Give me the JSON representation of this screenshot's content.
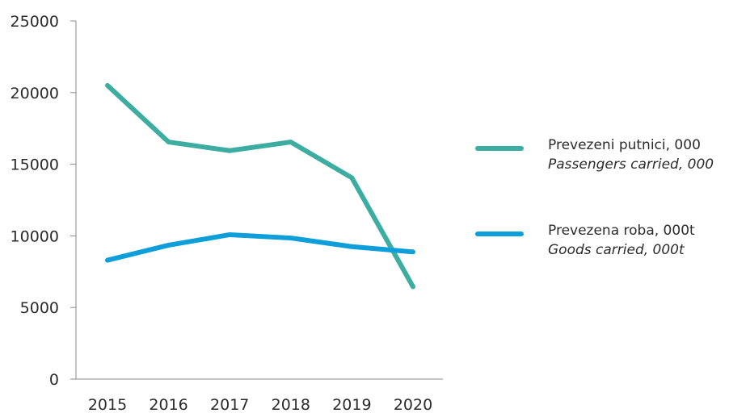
{
  "chart_data": {
    "type": "line",
    "categories": [
      "2015",
      "2016",
      "2017",
      "2018",
      "2019",
      "2020"
    ],
    "ylim": [
      0,
      25000
    ],
    "yticks": [
      "0",
      "5000",
      "10000",
      "15000",
      "20000",
      "25000"
    ],
    "series": [
      {
        "name": "Prevezeni putnici, 000",
        "name_en": "Passengers carried, 000",
        "color": "#3eada1",
        "values": [
          20500,
          16550,
          15950,
          16550,
          14050,
          6450
        ]
      },
      {
        "name": "Prevezena roba, 000t",
        "name_en": "Goods carried, 000t",
        "color": "#0e9fdb",
        "values": [
          8300,
          9350,
          10080,
          9850,
          9250,
          8880
        ]
      }
    ],
    "legend_position": "right",
    "grid": false
  }
}
